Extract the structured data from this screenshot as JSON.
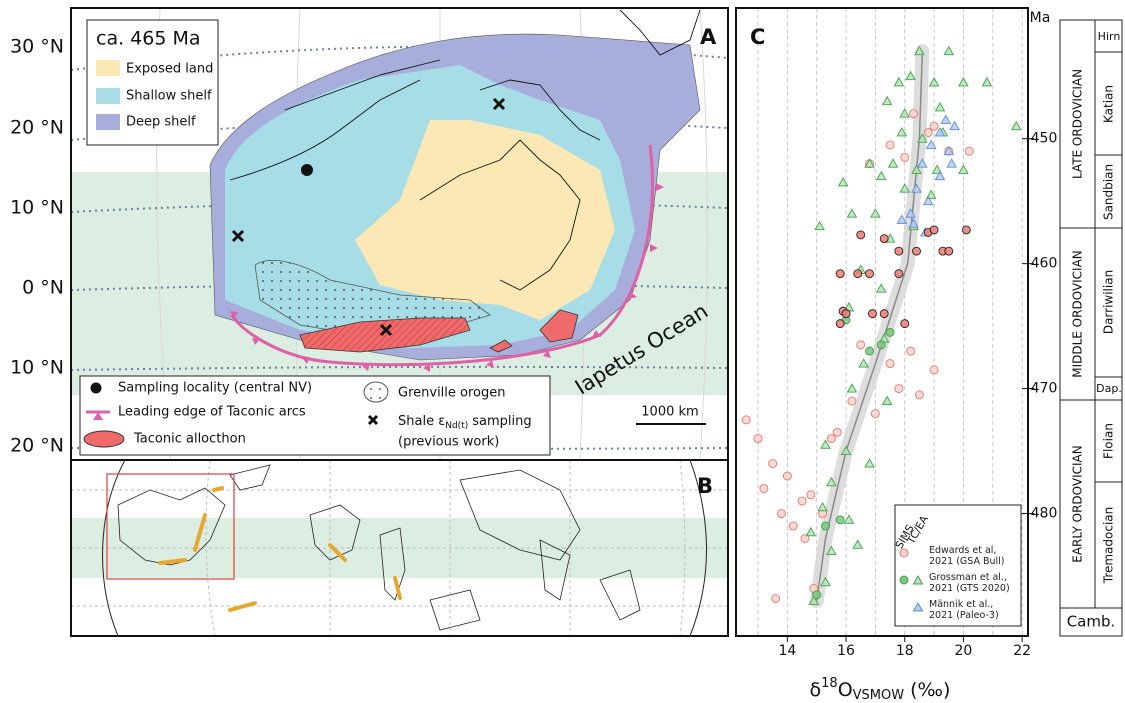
{
  "map_a": {
    "label": "A",
    "age": "ca. 465 Ma",
    "legend": [
      "Exposed land",
      "Shallow shelf",
      "Deep shelf"
    ],
    "latitudes": [
      "30 °N",
      "20 °N",
      "10 °N",
      "0 °N",
      "10 °N",
      "20 °N"
    ],
    "ocean": "Iapetus Ocean",
    "scale": "1000 km",
    "key": {
      "sampling": "Sampling locality (central NV)",
      "arcs": "Leading edge of Taconic arcs",
      "allochthon": "Taconic allocthon",
      "grenville": "Grenville orogen",
      "shale": [
        "Shale ε",
        "Nd(t)",
        "sampling"
      ],
      "previous": "(previous work)"
    }
  },
  "map_b": {
    "label": "B"
  },
  "timescale": {
    "epochs": [
      "LATE ORDOVICIAN",
      "MIDDLE ORDOVICIAN",
      "EARLY ORDOVICIAN"
    ],
    "stages": [
      "Hirn",
      "Katian",
      "Sandbian",
      "Darriwilian",
      "Dap.",
      "Floian",
      "Tremadocian"
    ],
    "below": "Camb."
  },
  "chart_data": {
    "type": "scatter",
    "label": "C",
    "x_label": [
      "δ",
      "18",
      "O",
      "VSMOW",
      " (‰)"
    ],
    "y_label": "Ma",
    "xlim": [
      12.25,
      22.2
    ],
    "xticks": [
      14,
      16,
      18,
      20,
      22
    ],
    "x_grid": [
      13,
      14,
      15,
      16,
      17,
      18,
      19,
      20,
      21,
      22
    ],
    "ylim": [
      439.7,
      489.8
    ],
    "y_inverted": true,
    "yticks": [
      450,
      460,
      470,
      480
    ],
    "legend_methods": [
      "SIMS",
      "TC/EA"
    ],
    "series": [
      {
        "type": "line",
        "color": "#8a8a8a",
        "x": [
          18.6,
          18.5,
          18.1,
          17.0,
          16.0,
          15.3,
          15.0
        ],
        "values": [
          443,
          450,
          460,
          468,
          475,
          482,
          487
        ]
      },
      {
        "name": "Edwards et al,\n2021 (GSA Bull)",
        "marker": "circle",
        "color": "#e8756c",
        "fill": "#fbd3cf",
        "x": [
          18.3,
          18.8,
          19.5,
          20.2,
          17.5,
          18.0,
          16.8,
          19.0,
          12.6,
          13.0,
          13.5,
          13.2,
          14.0,
          14.5,
          13.8,
          14.2,
          14.8,
          15.2,
          14.6,
          13.6,
          14.9,
          15.5,
          16.2,
          17.5,
          18.2,
          16.5,
          17.8,
          18.5,
          19.0,
          17.0,
          15.7
        ],
        "values": [
          448,
          449.5,
          451,
          451,
          450.5,
          451.5,
          452,
          449,
          472.5,
          474,
          476,
          478,
          477,
          479,
          480,
          481,
          478.5,
          480,
          482,
          486.8,
          486,
          474,
          471,
          468,
          467,
          466.5,
          470,
          470.5,
          468.5,
          472,
          473.5
        ]
      },
      {
        "name": "Grossman et al.,\n2021 (GTS 2020)",
        "marker": "triangle",
        "color": "#3da447",
        "fill": "#b6e3b8",
        "x": [
          18.5,
          19.5,
          17.8,
          18.2,
          19.0,
          20.0,
          20.8,
          17.4,
          18.0,
          19.2,
          21.8,
          17.9,
          18.6,
          19.3,
          16.8,
          17.6,
          18.4,
          19.1,
          20.0,
          15.9,
          17.2,
          18.0,
          18.9,
          15.1,
          16.2,
          17.0,
          17.5,
          18.3,
          16.5,
          17.2,
          16.1,
          17.3,
          16.6,
          16.2,
          17.4,
          15.3,
          16.0,
          15.5,
          16.8,
          15.2,
          16.1,
          14.8,
          15.5,
          16.4,
          15.3,
          14.9
        ],
        "values": [
          443,
          443,
          445.5,
          445,
          445.5,
          445.5,
          445.5,
          447,
          448,
          447.5,
          449,
          449.5,
          450,
          449.5,
          452,
          452,
          452.5,
          452.5,
          452.5,
          453.5,
          453,
          454,
          454.5,
          457,
          456,
          456,
          458,
          457,
          460.5,
          462,
          463.5,
          466,
          468,
          470,
          471,
          474.5,
          475,
          477.5,
          476,
          479.5,
          480.5,
          481.5,
          483,
          482.5,
          485.5,
          487
        ]
      },
      {
        "marker": "circle",
        "color": "#3da447",
        "fill": "#7cc47f",
        "x": [
          16.0,
          17.5,
          17.2,
          16.8,
          15.8,
          15.0,
          15.3
        ],
        "values": [
          464.5,
          465.5,
          466.5,
          467,
          480.5,
          486.5,
          481
        ]
      },
      {
        "name": "Männik et al.,\n2021 (Paleo-3)",
        "marker": "triangle",
        "color": "#5b8bd6",
        "fill": "#b9cdee",
        "x": [
          19.2,
          19.7,
          18.9,
          19.5,
          18.6,
          19.2,
          18.4,
          18.8,
          18.2,
          17.9,
          18.7,
          18.3,
          19.4,
          19.6
        ],
        "values": [
          449.5,
          449,
          450.5,
          451,
          452,
          453,
          454,
          455,
          456,
          456.5,
          457.5,
          456.8,
          448.5,
          452
        ]
      },
      {
        "marker": "circle",
        "color": "#222222",
        "fill": "#ef7a70",
        "x": [
          18.8,
          19.0,
          20.1,
          16.5,
          17.3,
          17.8,
          18.4,
          19.3,
          19.5,
          15.8,
          16.4,
          16.8,
          17.8,
          15.9,
          16.0,
          16.9,
          17.3,
          15.8,
          18.0
        ],
        "values": [
          457.5,
          457.3,
          457.3,
          457.7,
          458,
          459,
          459,
          459,
          459,
          460.8,
          460.8,
          460.8,
          460.8,
          463.8,
          464,
          464,
          464,
          464.8,
          464.8
        ]
      }
    ]
  }
}
